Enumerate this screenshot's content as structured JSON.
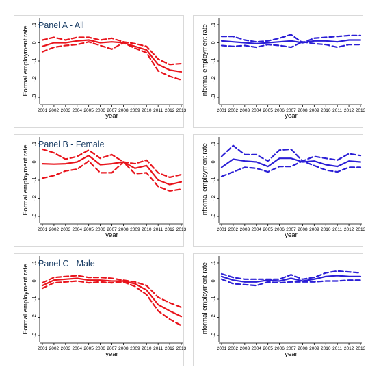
{
  "colors": {
    "formal": "#e8141c",
    "informal": "#2b1fd6",
    "frame": "#d9d9d9",
    "axis": "#000000"
  },
  "chart_data": [
    {
      "type": "line",
      "title": "Panel A - All",
      "xlabel": "year",
      "ylabel": "Formal employment rate",
      "x": [
        2001,
        2002,
        2003,
        2004,
        2005,
        2006,
        2007,
        2008,
        2009,
        2010,
        2011,
        2012,
        2013
      ],
      "xticks": [
        "2001",
        "2002",
        "2003",
        "2004",
        "2005",
        "2006",
        "2007",
        "2008",
        "2009",
        "2010",
        "2011",
        "2012",
        "2013"
      ],
      "yticks": [
        0.1,
        0,
        -0.1,
        -0.2,
        -0.3
      ],
      "ytick_labels": [
        ".1",
        "0",
        "-.1",
        "-.2",
        "-.3"
      ],
      "ylim": [
        -0.33,
        0.13
      ],
      "color": "formal",
      "series": [
        {
          "style": "solid",
          "values": [
            -0.02,
            0.0,
            0.0,
            0.01,
            0.015,
            0.0,
            0.005,
            0.0,
            -0.02,
            -0.04,
            -0.12,
            -0.15,
            -0.16
          ]
        },
        {
          "style": "dashed",
          "values": [
            0.015,
            0.03,
            0.015,
            0.03,
            0.03,
            0.015,
            0.025,
            0.005,
            -0.005,
            -0.02,
            -0.09,
            -0.12,
            -0.115
          ]
        },
        {
          "style": "dashed",
          "values": [
            -0.05,
            -0.025,
            -0.015,
            -0.01,
            0.005,
            -0.015,
            -0.035,
            0.0,
            -0.03,
            -0.055,
            -0.155,
            -0.185,
            -0.205
          ]
        }
      ]
    },
    {
      "type": "line",
      "title": "",
      "xlabel": "year",
      "ylabel": "Informal employment rate",
      "x": [
        2001,
        2002,
        2003,
        2004,
        2005,
        2006,
        2007,
        2008,
        2009,
        2010,
        2011,
        2012,
        2013
      ],
      "xticks": [
        "2001",
        "2002",
        "2003",
        "2004",
        "2005",
        "2006",
        "2007",
        "2008",
        "2009",
        "2010",
        "2011",
        "2012",
        "2013"
      ],
      "yticks": [
        0.1,
        0,
        -0.1,
        -0.2,
        -0.3
      ],
      "ytick_labels": [
        ".1",
        "0",
        "-.1",
        "-.2",
        "-.3"
      ],
      "ylim": [
        -0.33,
        0.13
      ],
      "color": "informal",
      "series": [
        {
          "style": "solid",
          "values": [
            0.01,
            0.005,
            0.0,
            -0.005,
            0.0,
            0.005,
            0.01,
            0.0,
            0.01,
            0.01,
            0.005,
            0.015,
            0.015
          ]
        },
        {
          "style": "dashed",
          "values": [
            0.035,
            0.035,
            0.015,
            0.005,
            0.01,
            0.025,
            0.045,
            0.0,
            0.025,
            0.03,
            0.035,
            0.04,
            0.04
          ]
        },
        {
          "style": "dashed",
          "values": [
            -0.015,
            -0.02,
            -0.015,
            -0.025,
            -0.01,
            -0.015,
            -0.025,
            0.005,
            -0.005,
            -0.01,
            -0.025,
            -0.01,
            -0.01
          ]
        }
      ]
    },
    {
      "type": "line",
      "title": "Panel B - Female",
      "xlabel": "year",
      "ylabel": "Formal employment rate",
      "x": [
        2001,
        2002,
        2003,
        2004,
        2005,
        2006,
        2007,
        2008,
        2009,
        2010,
        2011,
        2012,
        2013
      ],
      "xticks": [
        "2001",
        "2002",
        "2003",
        "2004",
        "2005",
        "2006",
        "2007",
        "2008",
        "2009",
        "2010",
        "2011",
        "2012",
        "2013"
      ],
      "yticks": [
        0.1,
        0,
        -0.1,
        -0.2,
        -0.3
      ],
      "ytick_labels": [
        ".1",
        "0",
        "-.1",
        "-.2",
        "-.3"
      ],
      "ylim": [
        -0.33,
        0.13
      ],
      "color": "formal",
      "series": [
        {
          "style": "solid",
          "values": [
            -0.01,
            -0.012,
            -0.01,
            0.0,
            0.035,
            -0.015,
            -0.01,
            0.0,
            -0.035,
            -0.02,
            -0.1,
            -0.125,
            -0.11
          ]
        },
        {
          "style": "dashed",
          "values": [
            0.07,
            0.05,
            0.015,
            0.03,
            0.065,
            0.02,
            0.04,
            0.0,
            -0.01,
            0.01,
            -0.06,
            -0.085,
            -0.07
          ]
        },
        {
          "style": "dashed",
          "values": [
            -0.09,
            -0.075,
            -0.05,
            -0.04,
            0.005,
            -0.06,
            -0.06,
            0.0,
            -0.065,
            -0.06,
            -0.135,
            -0.16,
            -0.15
          ]
        }
      ]
    },
    {
      "type": "line",
      "title": "",
      "xlabel": "year",
      "ylabel": "Informal employment rate",
      "x": [
        2001,
        2002,
        2003,
        2004,
        2005,
        2006,
        2007,
        2008,
        2009,
        2010,
        2011,
        2012,
        2013
      ],
      "xticks": [
        "2001",
        "2002",
        "2003",
        "2004",
        "2005",
        "2006",
        "2007",
        "2008",
        "2009",
        "2010",
        "2011",
        "2012",
        "2013"
      ],
      "yticks": [
        0.1,
        0,
        -0.1,
        -0.2,
        -0.3
      ],
      "ytick_labels": [
        ".1",
        "0",
        "-.1",
        "-.2",
        "-.3"
      ],
      "ylim": [
        -0.33,
        0.13
      ],
      "color": "informal",
      "series": [
        {
          "style": "solid",
          "values": [
            -0.03,
            0.015,
            0.005,
            0.0,
            -0.025,
            0.02,
            0.02,
            0.0,
            0.005,
            -0.015,
            -0.025,
            0.005,
            0.0
          ]
        },
        {
          "style": "dashed",
          "values": [
            0.03,
            0.09,
            0.04,
            0.04,
            0.005,
            0.065,
            0.07,
            0.005,
            0.03,
            0.02,
            0.01,
            0.045,
            0.035
          ]
        },
        {
          "style": "dashed",
          "values": [
            -0.08,
            -0.055,
            -0.03,
            -0.035,
            -0.055,
            -0.025,
            -0.025,
            0.005,
            -0.02,
            -0.045,
            -0.055,
            -0.03,
            -0.03
          ]
        }
      ]
    },
    {
      "type": "line",
      "title": "Panel C - Male",
      "xlabel": "year",
      "ylabel": "Formal employment rate",
      "x": [
        2001,
        2002,
        2003,
        2004,
        2005,
        2006,
        2007,
        2008,
        2009,
        2010,
        2011,
        2012,
        2013
      ],
      "xticks": [
        "2001",
        "2002",
        "2003",
        "2004",
        "2005",
        "2006",
        "2007",
        "2008",
        "2009",
        "2010",
        "2011",
        "2012",
        "2013"
      ],
      "yticks": [
        0.1,
        0,
        -0.1,
        -0.2,
        -0.3
      ],
      "ytick_labels": [
        ".1",
        "0",
        "-.1",
        "-.2",
        "-.3"
      ],
      "ylim": [
        -0.33,
        0.13
      ],
      "color": "formal",
      "series": [
        {
          "style": "solid",
          "values": [
            -0.025,
            0.005,
            0.01,
            0.015,
            0.005,
            0.005,
            0.0,
            0.0,
            -0.015,
            -0.05,
            -0.13,
            -0.165,
            -0.195
          ]
        },
        {
          "style": "dashed",
          "values": [
            -0.01,
            0.02,
            0.025,
            0.03,
            0.02,
            0.02,
            0.015,
            0.005,
            -0.005,
            -0.025,
            -0.09,
            -0.12,
            -0.145
          ]
        },
        {
          "style": "dashed",
          "values": [
            -0.04,
            -0.01,
            -0.005,
            0.0,
            -0.01,
            -0.005,
            -0.01,
            -0.005,
            -0.03,
            -0.075,
            -0.165,
            -0.21,
            -0.245
          ]
        }
      ]
    },
    {
      "type": "line",
      "title": "",
      "xlabel": "year",
      "ylabel": "Informal employment rate",
      "x": [
        2001,
        2002,
        2003,
        2004,
        2005,
        2006,
        2007,
        2008,
        2009,
        2010,
        2011,
        2012,
        2013
      ],
      "xticks": [
        "2001",
        "2002",
        "2003",
        "2004",
        "2005",
        "2006",
        "2007",
        "2008",
        "2009",
        "2010",
        "2011",
        "2012",
        "2013"
      ],
      "yticks": [
        0.1,
        0,
        -0.1,
        -0.2,
        -0.3
      ],
      "ytick_labels": [
        ".1",
        "0",
        "-.1",
        "-.2",
        "-.3"
      ],
      "ylim": [
        -0.33,
        0.13
      ],
      "color": "informal",
      "series": [
        {
          "style": "solid",
          "values": [
            0.025,
            0.005,
            -0.005,
            -0.005,
            0.005,
            0.0,
            0.015,
            0.0,
            0.01,
            0.025,
            0.03,
            0.025,
            0.025
          ]
        },
        {
          "style": "dashed",
          "values": [
            0.04,
            0.02,
            0.01,
            0.01,
            0.01,
            0.01,
            0.035,
            0.01,
            0.02,
            0.045,
            0.055,
            0.05,
            0.045
          ]
        },
        {
          "style": "dashed",
          "values": [
            0.01,
            -0.015,
            -0.02,
            -0.025,
            -0.005,
            -0.01,
            -0.005,
            -0.005,
            -0.005,
            0.0,
            0.0,
            0.005,
            0.005
          ]
        }
      ]
    }
  ]
}
